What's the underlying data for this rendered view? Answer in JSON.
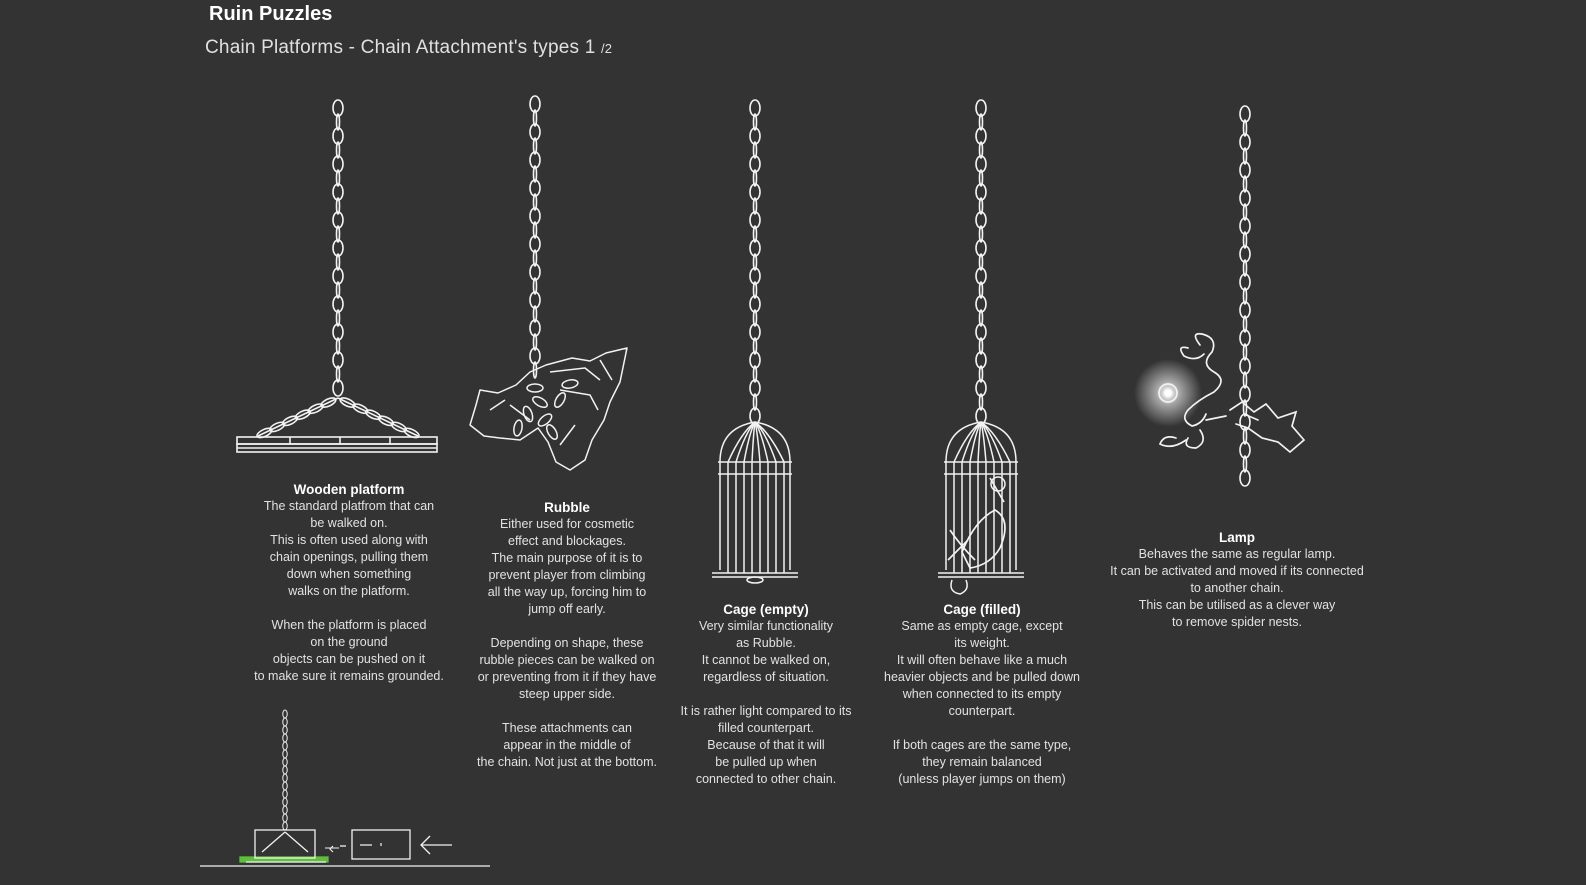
{
  "title": "Ruin Puzzles",
  "subtitle": "Chain Platforms - Chain Attachment's types 1",
  "page_marker": "/2",
  "colors": {
    "background": "#333333",
    "ink": "#f2f2f2",
    "ground_highlight": "#5fbf3a",
    "lamp_glow": "#ffffff"
  },
  "attachments": [
    {
      "name": "Wooden platform",
      "lines": [
        "The standard platfrom that can",
        "be walked on.",
        "This is often used along with",
        "chain openings, pulling them",
        "down when something",
        "walks on the platform.",
        "",
        "When the platform is placed",
        "on the ground",
        "objects can be pushed on it",
        "to make sure it remains grounded."
      ]
    },
    {
      "name": "Rubble",
      "lines": [
        "Either used for cosmetic",
        "effect and blockages.",
        "The main purpose of it is to",
        "prevent player from climbing",
        "all the way up, forcing him to",
        "jump off early.",
        "",
        "Depending on shape, these",
        "rubble pieces can be walked on",
        "or preventing from it if they have",
        "steep upper side.",
        "",
        "These attachments can",
        "appear in the middle of",
        "the chain. Not just at the bottom."
      ]
    },
    {
      "name": "Cage (empty)",
      "lines": [
        "Very similar functionality",
        "as Rubble.",
        "It cannot be walked on,",
        "regardless of situation.",
        "",
        "It is rather light compared to its",
        "filled counterpart.",
        "Because of that it will",
        "be pulled up when",
        "connected to other chain."
      ]
    },
    {
      "name": "Cage (filled)",
      "lines": [
        "Same as empty cage, except",
        "its weight.",
        "It will often behave like a much",
        "heavier objects and be pulled down",
        "when connected to its empty",
        "counterpart.",
        "",
        "If both cages are the same type,",
        "they remain balanced",
        "(unless player jumps on them)"
      ]
    },
    {
      "name": "Lamp",
      "lines": [
        "Behaves the same as regular lamp.",
        "It can be activated and moved if its connected",
        "to another chain.",
        "This can be utilised as a clever way",
        "to remove spider nests."
      ]
    }
  ],
  "illustrations": [
    "wooden-platform-illustration",
    "rubble-illustration",
    "empty-cage-illustration",
    "filled-cage-illustration",
    "lamp-illustration",
    "grounded-platform-push-diagram"
  ]
}
